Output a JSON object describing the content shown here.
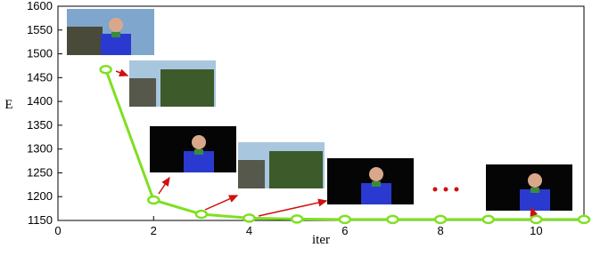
{
  "chart_data": {
    "type": "line",
    "x_label": "iter",
    "y_label": "E",
    "x": [
      1,
      2,
      3,
      4,
      5,
      6,
      7,
      8,
      9,
      10,
      11
    ],
    "series": [
      {
        "name": "E",
        "color": "#7fe020",
        "values": [
          1467,
          1193,
          1163,
          1155,
          1153,
          1152,
          1152,
          1152,
          1152,
          1152,
          1152
        ]
      }
    ],
    "xlim": [
      0,
      11
    ],
    "xticks": [
      0,
      2,
      4,
      6,
      8,
      10
    ],
    "ylim": [
      1150,
      1600
    ],
    "yticks": [
      1150,
      1200,
      1250,
      1300,
      1350,
      1400,
      1450,
      1500,
      1550,
      1600
    ]
  }
}
